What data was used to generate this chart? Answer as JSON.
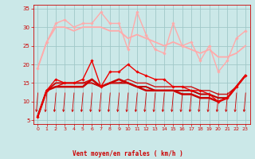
{
  "background_color": "#cbe8e8",
  "grid_color": "#a0c8c8",
  "xlabel": "Vent moyen/en rafales ( km/h )",
  "xlabel_color": "#cc0000",
  "tick_color": "#cc0000",
  "xlim": [
    -0.5,
    23.5
  ],
  "ylim": [
    4,
    36
  ],
  "yticks": [
    5,
    10,
    15,
    20,
    25,
    30,
    35
  ],
  "xticks": [
    0,
    1,
    2,
    3,
    4,
    5,
    6,
    7,
    8,
    9,
    10,
    11,
    12,
    13,
    14,
    15,
    16,
    17,
    18,
    19,
    20,
    21,
    22,
    23
  ],
  "series": [
    {
      "x": [
        0,
        1,
        2,
        3,
        4,
        5,
        6,
        7,
        8,
        9,
        10,
        11,
        12,
        13,
        14,
        15,
        16,
        17,
        18,
        19,
        20,
        21,
        22,
        23
      ],
      "y": [
        19,
        26,
        31,
        32,
        30,
        31,
        31,
        34,
        31,
        31,
        24,
        34,
        28,
        24,
        23,
        31,
        25,
        26,
        21,
        25,
        18,
        21,
        27,
        29
      ],
      "color": "#ffaaaa",
      "linewidth": 1.0,
      "marker": "D",
      "markersize": 1.8
    },
    {
      "x": [
        0,
        1,
        2,
        3,
        4,
        5,
        6,
        7,
        8,
        9,
        10,
        11,
        12,
        13,
        14,
        15,
        16,
        17,
        18,
        19,
        20,
        21,
        22,
        23
      ],
      "y": [
        19,
        26,
        30,
        30,
        29,
        30,
        30,
        30,
        29,
        29,
        27,
        28,
        27,
        26,
        25,
        26,
        25,
        24,
        23,
        24,
        22,
        22,
        23,
        25
      ],
      "color": "#ffaaaa",
      "linewidth": 1.3,
      "marker": null,
      "markersize": 0
    },
    {
      "x": [
        0,
        1,
        2,
        3,
        4,
        5,
        6,
        7,
        8,
        9,
        10,
        11,
        12,
        13,
        14,
        15,
        16,
        17,
        18,
        19,
        20,
        21,
        22,
        23
      ],
      "y": [
        6,
        13,
        16,
        15,
        15,
        16,
        21,
        14,
        18,
        18,
        20,
        18,
        17,
        16,
        16,
        14,
        14,
        13,
        13,
        12,
        10,
        11,
        14,
        17
      ],
      "color": "#ee0000",
      "linewidth": 1.0,
      "marker": "D",
      "markersize": 1.8
    },
    {
      "x": [
        0,
        1,
        2,
        3,
        4,
        5,
        6,
        7,
        8,
        9,
        10,
        11,
        12,
        13,
        14,
        15,
        16,
        17,
        18,
        19,
        20,
        21,
        22,
        23
      ],
      "y": [
        6,
        13,
        14,
        15,
        15,
        15,
        16,
        14,
        15,
        15,
        15,
        14,
        14,
        13,
        13,
        13,
        13,
        13,
        12,
        12,
        11,
        11,
        14,
        17
      ],
      "color": "#dd0000",
      "linewidth": 1.0,
      "marker": null,
      "markersize": 0
    },
    {
      "x": [
        0,
        1,
        2,
        3,
        4,
        5,
        6,
        7,
        8,
        9,
        10,
        11,
        12,
        13,
        14,
        15,
        16,
        17,
        18,
        19,
        20,
        21,
        22,
        23
      ],
      "y": [
        6,
        13,
        15,
        15,
        15,
        15,
        15,
        14,
        15,
        15,
        15,
        14,
        14,
        13,
        13,
        13,
        13,
        13,
        12,
        12,
        11,
        11,
        14,
        17
      ],
      "color": "#bb0000",
      "linewidth": 1.3,
      "marker": null,
      "markersize": 0
    },
    {
      "x": [
        0,
        1,
        2,
        3,
        4,
        5,
        6,
        7,
        8,
        9,
        10,
        11,
        12,
        13,
        14,
        15,
        16,
        17,
        18,
        19,
        20,
        21,
        22,
        23
      ],
      "y": [
        6,
        13,
        15,
        15,
        15,
        15,
        15,
        14,
        15,
        15,
        16,
        15,
        15,
        14,
        14,
        14,
        14,
        14,
        13,
        13,
        12,
        12,
        14,
        17
      ],
      "color": "#cc1111",
      "linewidth": 1.0,
      "marker": null,
      "markersize": 0
    },
    {
      "x": [
        0,
        1,
        2,
        3,
        4,
        5,
        6,
        7,
        8,
        9,
        10,
        11,
        12,
        13,
        14,
        15,
        16,
        17,
        18,
        19,
        20,
        21,
        22,
        23
      ],
      "y": [
        6,
        13,
        14,
        14,
        14,
        14,
        16,
        14,
        15,
        16,
        15,
        14,
        13,
        13,
        13,
        13,
        12,
        12,
        11,
        11,
        10,
        11,
        14,
        17
      ],
      "color": "#cc0000",
      "linewidth": 1.8,
      "marker": null,
      "markersize": 0
    }
  ]
}
